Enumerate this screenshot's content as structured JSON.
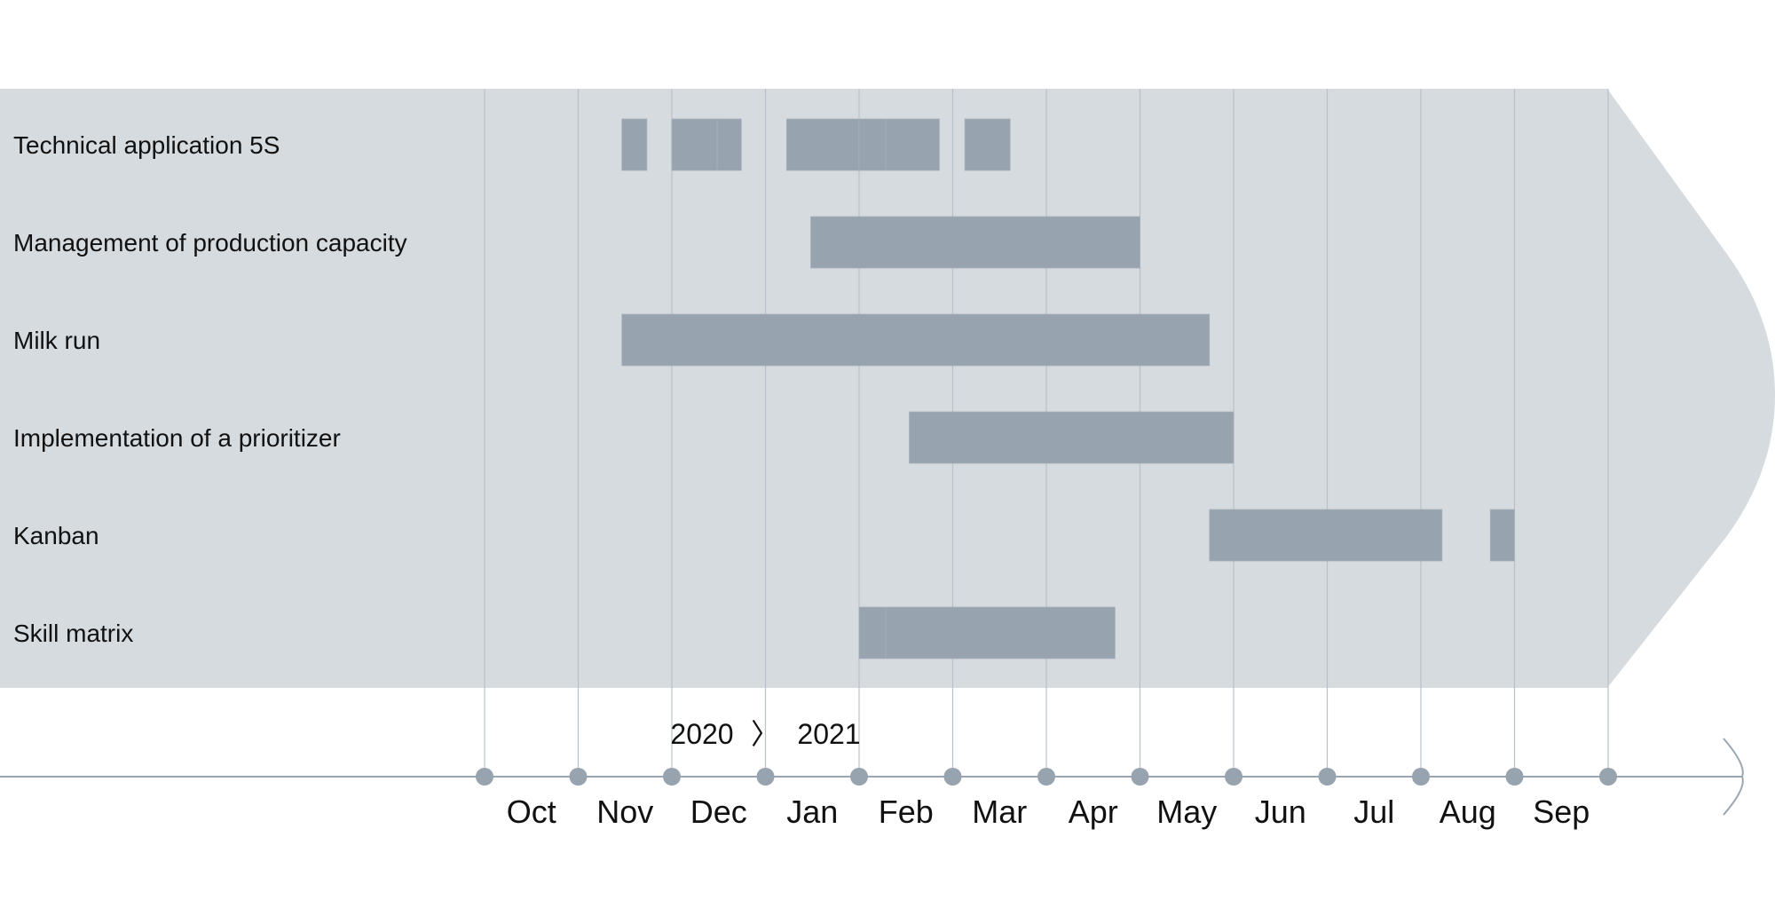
{
  "chart_data": {
    "type": "gantt",
    "title": "",
    "x_axis": {
      "months": [
        "Oct",
        "Nov",
        "Dec",
        "Jan",
        "Feb",
        "Mar",
        "Apr",
        "May",
        "Jun",
        "Jul",
        "Aug",
        "Sep"
      ],
      "years": [
        "2020",
        "2021"
      ],
      "year_separator": "〉"
    },
    "tasks": [
      {
        "name": "Technical application 5S",
        "segments": [
          {
            "start": "2020-11-15",
            "end": "2020-11-23"
          },
          {
            "start": "2020-12-01",
            "end": "2020-12-16"
          },
          {
            "start": "2020-12-16",
            "end": "2020-12-24"
          },
          {
            "start": "2021-01-08",
            "end": "2021-02-01"
          },
          {
            "start": "2021-02-01",
            "end": "2021-02-09"
          },
          {
            "start": "2021-02-09",
            "end": "2021-02-25"
          },
          {
            "start": "2021-03-05",
            "end": "2021-03-20"
          }
        ]
      },
      {
        "name": "Management of production capacity",
        "segments": [
          {
            "start": "2021-01-16",
            "end": "2021-05-01"
          }
        ]
      },
      {
        "name": "Milk run",
        "segments": [
          {
            "start": "2020-11-15",
            "end": "2021-05-24"
          }
        ]
      },
      {
        "name": "Implementation of a prioritizer",
        "segments": [
          {
            "start": "2021-02-16",
            "end": "2021-06-01"
          }
        ]
      },
      {
        "name": "Kanban",
        "segments": [
          {
            "start": "2021-05-24",
            "end": "2021-08-08"
          },
          {
            "start": "2021-08-24",
            "end": "2021-09-01"
          }
        ]
      },
      {
        "name": "Skill matrix",
        "segments": [
          {
            "start": "2021-02-01",
            "end": "2021-02-09"
          },
          {
            "start": "2021-02-09",
            "end": "2021-04-23"
          }
        ]
      }
    ],
    "grid": true,
    "colors": {
      "panel": "#d6dbe0",
      "bar": "#97a3ae",
      "bar_seam": "#a7b1bb",
      "gridline": "#b9c1c8",
      "axis": "#9aa5b0",
      "tick_dot": "#97a3ae",
      "text": "#111111"
    }
  }
}
